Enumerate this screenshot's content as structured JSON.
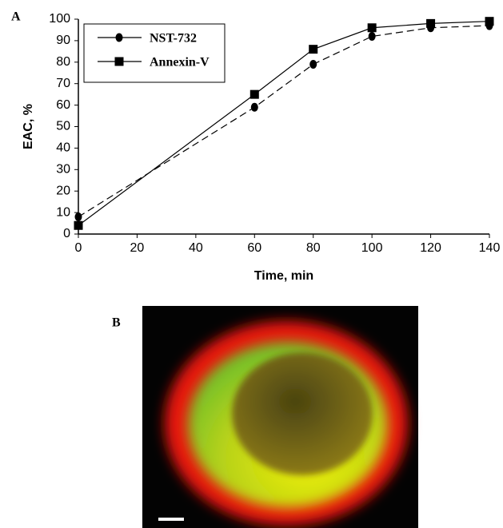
{
  "panel_labels": [
    "A",
    "B"
  ],
  "chart_data": {
    "type": "line",
    "xlabel": "Time, min",
    "ylabel": "EAC, %",
    "x": [
      0,
      60,
      80,
      100,
      120,
      140
    ],
    "series": [
      {
        "name": "NST-732",
        "color": "#000000",
        "style": "dashed",
        "marker": "circle",
        "values": [
          8,
          59,
          79,
          92,
          96,
          97
        ]
      },
      {
        "name": "Annexin-V",
        "color": "#000000",
        "style": "solid",
        "marker": "square",
        "values": [
          4,
          65,
          86,
          96,
          98,
          99
        ]
      }
    ],
    "xlim": [
      0,
      140
    ],
    "xticks": [
      0,
      20,
      40,
      60,
      80,
      100,
      120,
      140
    ],
    "ylim": [
      0,
      100
    ],
    "yticks": [
      0,
      10,
      20,
      30,
      40,
      50,
      60,
      70,
      80,
      90,
      100
    ],
    "grid": false,
    "legend": "upper left"
  }
}
